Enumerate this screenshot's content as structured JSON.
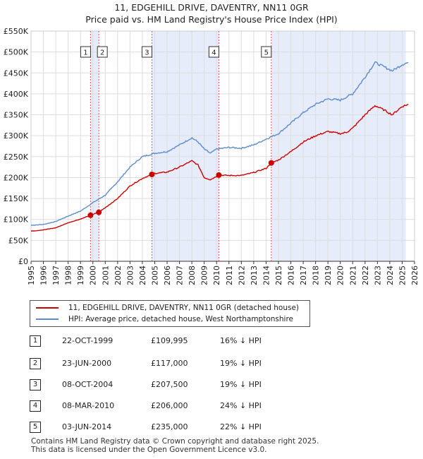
{
  "title_line1": "11, EDGEHILL DRIVE, DAVENTRY, NN11 0GR",
  "title_line2": "Price paid vs. HM Land Registry's House Price Index (HPI)",
  "colors": {
    "property": "#cc0000",
    "hpi": "#5b8ccc",
    "shade": "#e6ecfa",
    "grid": "#dddddd"
  },
  "legend": {
    "property": "11, EDGEHILL DRIVE, DAVENTRY, NN11 0GR (detached house)",
    "hpi": "HPI: Average price, detached house, West Northamptonshire"
  },
  "transactions": [
    {
      "num": "1",
      "date": "22-OCT-1999",
      "price": "£109,995",
      "hpi": "16% ↓ HPI"
    },
    {
      "num": "2",
      "date": "23-JUN-2000",
      "price": "£117,000",
      "hpi": "19% ↓ HPI"
    },
    {
      "num": "3",
      "date": "08-OCT-2004",
      "price": "£207,500",
      "hpi": "19% ↓ HPI"
    },
    {
      "num": "4",
      "date": "08-MAR-2010",
      "price": "£206,000",
      "hpi": "24% ↓ HPI"
    },
    {
      "num": "5",
      "date": "03-JUN-2014",
      "price": "£235,000",
      "hpi": "22% ↓ HPI"
    }
  ],
  "footer_line1": "Contains HM Land Registry data © Crown copyright and database right 2025.",
  "footer_line2": "This data is licensed under the Open Government Licence v3.0.",
  "chart_data": {
    "type": "line",
    "title": "Price paid vs. HM Land Registry's House Price Index (HPI)",
    "xlim": [
      1995,
      2026
    ],
    "ylim": [
      0,
      550000
    ],
    "x_ticks": [
      1995,
      1996,
      1997,
      1998,
      1999,
      2000,
      2001,
      2002,
      2003,
      2004,
      2005,
      2006,
      2007,
      2008,
      2009,
      2010,
      2011,
      2012,
      2013,
      2014,
      2015,
      2016,
      2017,
      2018,
      2019,
      2020,
      2021,
      2022,
      2023,
      2024,
      2025,
      2026
    ],
    "y_ticks": [
      0,
      50000,
      100000,
      150000,
      200000,
      250000,
      300000,
      350000,
      400000,
      450000,
      500000,
      550000
    ],
    "y_tick_labels": [
      "£0",
      "£50K",
      "£100K",
      "£150K",
      "£200K",
      "£250K",
      "£300K",
      "£350K",
      "£400K",
      "£450K",
      "£500K",
      "£550K"
    ],
    "shaded_periods": [
      [
        1999.81,
        2000.48
      ],
      [
        2004.77,
        2010.18
      ],
      [
        2014.42,
        2025.3
      ]
    ],
    "series": [
      {
        "name": "11, EDGEHILL DRIVE, DAVENTRY, NN11 0GR (detached house)",
        "color": "#cc0000",
        "points": [
          [
            1995,
            72000
          ],
          [
            1996,
            75000
          ],
          [
            1997,
            80000
          ],
          [
            1998,
            92000
          ],
          [
            1999,
            101000
          ],
          [
            1999.81,
            109995
          ],
          [
            2000.48,
            117000
          ],
          [
            2001,
            128000
          ],
          [
            2002,
            150000
          ],
          [
            2003,
            180000
          ],
          [
            2004,
            198000
          ],
          [
            2004.77,
            207500
          ],
          [
            2005,
            210000
          ],
          [
            2006,
            213000
          ],
          [
            2007,
            225000
          ],
          [
            2008,
            240000
          ],
          [
            2008.5,
            230000
          ],
          [
            2009,
            200000
          ],
          [
            2009.5,
            195000
          ],
          [
            2010.18,
            206000
          ],
          [
            2011,
            205000
          ],
          [
            2012,
            205000
          ],
          [
            2013,
            212000
          ],
          [
            2014,
            222000
          ],
          [
            2014.42,
            235000
          ],
          [
            2015,
            242000
          ],
          [
            2016,
            262000
          ],
          [
            2017,
            285000
          ],
          [
            2018,
            300000
          ],
          [
            2019,
            310000
          ],
          [
            2020,
            305000
          ],
          [
            2020.5,
            308000
          ],
          [
            2021,
            318000
          ],
          [
            2022,
            350000
          ],
          [
            2022.8,
            372000
          ],
          [
            2023.5,
            362000
          ],
          [
            2024.2,
            350000
          ],
          [
            2025,
            370000
          ],
          [
            2025.5,
            375000
          ]
        ]
      },
      {
        "name": "HPI: Average price, detached house, West Northamptonshire",
        "color": "#5b8ccc",
        "points": [
          [
            1995,
            86000
          ],
          [
            1996,
            88000
          ],
          [
            1997,
            95000
          ],
          [
            1998,
            108000
          ],
          [
            1999,
            120000
          ],
          [
            2000,
            140000
          ],
          [
            2001,
            158000
          ],
          [
            2002,
            190000
          ],
          [
            2003,
            225000
          ],
          [
            2004,
            250000
          ],
          [
            2005,
            258000
          ],
          [
            2006,
            262000
          ],
          [
            2007,
            278000
          ],
          [
            2008,
            295000
          ],
          [
            2008.5,
            285000
          ],
          [
            2009,
            268000
          ],
          [
            2009.5,
            258000
          ],
          [
            2010,
            268000
          ],
          [
            2011,
            272000
          ],
          [
            2012,
            270000
          ],
          [
            2013,
            278000
          ],
          [
            2014,
            292000
          ],
          [
            2015,
            305000
          ],
          [
            2016,
            330000
          ],
          [
            2017,
            355000
          ],
          [
            2018,
            375000
          ],
          [
            2019,
            388000
          ],
          [
            2020,
            385000
          ],
          [
            2021,
            400000
          ],
          [
            2022,
            440000
          ],
          [
            2022.8,
            475000
          ],
          [
            2023.5,
            465000
          ],
          [
            2024.2,
            455000
          ],
          [
            2025,
            470000
          ],
          [
            2025.5,
            475000
          ]
        ]
      }
    ],
    "markers": [
      {
        "label": "1",
        "x": 1999.81,
        "y": 109995
      },
      {
        "label": "2",
        "x": 2000.48,
        "y": 117000
      },
      {
        "label": "3",
        "x": 2004.77,
        "y": 207500
      },
      {
        "label": "4",
        "x": 2010.18,
        "y": 206000
      },
      {
        "label": "5",
        "x": 2014.42,
        "y": 235000
      }
    ]
  }
}
